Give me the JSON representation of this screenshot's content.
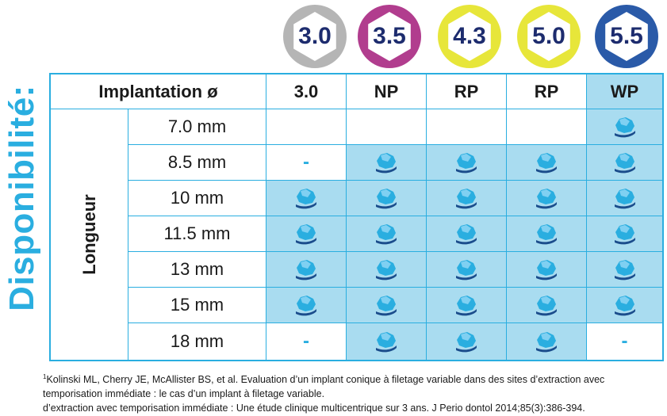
{
  "side_title": "Disponibilité:",
  "badges": [
    {
      "label": "3.0",
      "color": "#b5b5b5"
    },
    {
      "label": "3.5",
      "color": "#b13d8e"
    },
    {
      "label": "4.3",
      "color": "#e7e63a"
    },
    {
      "label": "5.0",
      "color": "#e7e63a"
    },
    {
      "label": "5.5",
      "color": "#2a5aa8"
    }
  ],
  "table": {
    "header_label": "Implantation ø",
    "columns": [
      "3.0",
      "NP",
      "RP",
      "RP",
      "WP"
    ],
    "row_group_label": "Longueur",
    "rows": [
      {
        "length": "7.0 mm",
        "cells": [
          "empty",
          "empty",
          "empty",
          "empty",
          "yes"
        ]
      },
      {
        "length": "8.5 mm",
        "cells": [
          "dash",
          "yes",
          "yes",
          "yes",
          "yes"
        ]
      },
      {
        "length": "10 mm",
        "cells": [
          "yes",
          "yes",
          "yes",
          "yes",
          "yes"
        ]
      },
      {
        "length": "11.5 mm",
        "cells": [
          "yes",
          "yes",
          "yes",
          "yes",
          "yes"
        ]
      },
      {
        "length": "13 mm",
        "cells": [
          "yes",
          "yes",
          "yes",
          "yes",
          "yes"
        ]
      },
      {
        "length": "15 mm",
        "cells": [
          "yes",
          "yes",
          "yes",
          "yes",
          "yes"
        ]
      },
      {
        "length": "18 mm",
        "cells": [
          "dash",
          "yes",
          "yes",
          "yes",
          "dash"
        ]
      }
    ],
    "dash_symbol": "-",
    "available_icon": "tooth-icon"
  },
  "footnote": {
    "marker": "1",
    "line1": "Kolinski ML, Cherry JE, McAllister BS, et al. Evaluation d’un implant conique à filetage variable dans des sites d’extraction avec",
    "line2": "temporisation immédiate : le cas d’un implant à filetage variable.",
    "line3": "d’extraction avec temporisation immédiate : Une étude clinique multicentrique sur 3 ans. J Perio dontol 2014;85(3):386-394."
  },
  "colors": {
    "accent": "#2aaee0",
    "cell_fill": "#a9dcf0",
    "badge_text": "#1d2c6e"
  }
}
